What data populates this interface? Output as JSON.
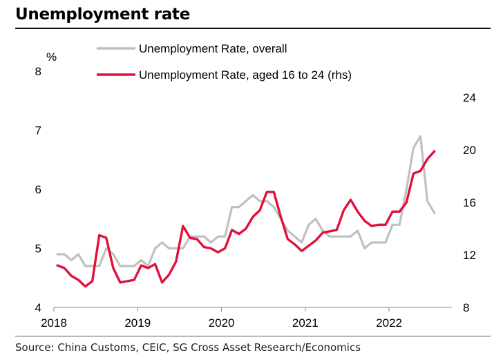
{
  "title": "Unemployment rate",
  "source": "Source: China Customs, CEIC, SG Cross Asset Research/Economics",
  "chart_data": {
    "type": "line",
    "left_axis": {
      "unit_label": "%",
      "ylim": [
        4,
        8
      ],
      "ticks": [
        "4",
        "5",
        "6",
        "7",
        "8"
      ]
    },
    "right_axis": {
      "ylim": [
        8,
        26
      ],
      "ticks": [
        "8",
        "12",
        "16",
        "20",
        "24"
      ]
    },
    "x_axis": {
      "ticks": [
        "2018",
        "2019",
        "2020",
        "2021",
        "2022"
      ],
      "start": 2018,
      "months": 56
    },
    "series": [
      {
        "name": "Unemployment Rate, overall",
        "axis": "left",
        "color": "#c0c0c0",
        "values": [
          4.9,
          4.9,
          4.8,
          4.9,
          4.7,
          4.7,
          4.7,
          5.0,
          4.9,
          4.7,
          4.7,
          4.7,
          4.8,
          4.7,
          5.0,
          5.1,
          5.0,
          5.0,
          5.0,
          5.2,
          5.2,
          5.2,
          5.1,
          5.2,
          5.2,
          5.7,
          5.7,
          5.8,
          5.9,
          5.8,
          5.8,
          5.7,
          5.5,
          5.3,
          5.2,
          5.1,
          5.4,
          5.5,
          5.3,
          5.2,
          5.2,
          5.2,
          5.2,
          5.3,
          5.0,
          5.1,
          5.1,
          5.1,
          5.4,
          5.4,
          6.0,
          6.7,
          6.9,
          5.8,
          5.6
        ]
      },
      {
        "name": "Unemployment Rate, aged 16 to 24 (rhs)",
        "axis": "right",
        "color": "#e0103a",
        "values": [
          11.2,
          11.0,
          10.4,
          10.1,
          9.6,
          10.0,
          13.5,
          13.3,
          11.0,
          9.9,
          10.0,
          10.1,
          11.2,
          11.0,
          11.3,
          9.9,
          10.5,
          11.5,
          14.2,
          13.3,
          13.2,
          12.6,
          12.5,
          12.2,
          12.5,
          13.9,
          13.6,
          14.0,
          14.9,
          15.4,
          16.8,
          16.8,
          14.9,
          13.2,
          12.8,
          12.3,
          12.7,
          13.1,
          13.7,
          13.8,
          13.9,
          15.4,
          16.2,
          15.3,
          14.6,
          14.2,
          14.3,
          14.3,
          15.3,
          15.3,
          16.0,
          18.2,
          18.4,
          19.3,
          19.9
        ]
      }
    ]
  }
}
